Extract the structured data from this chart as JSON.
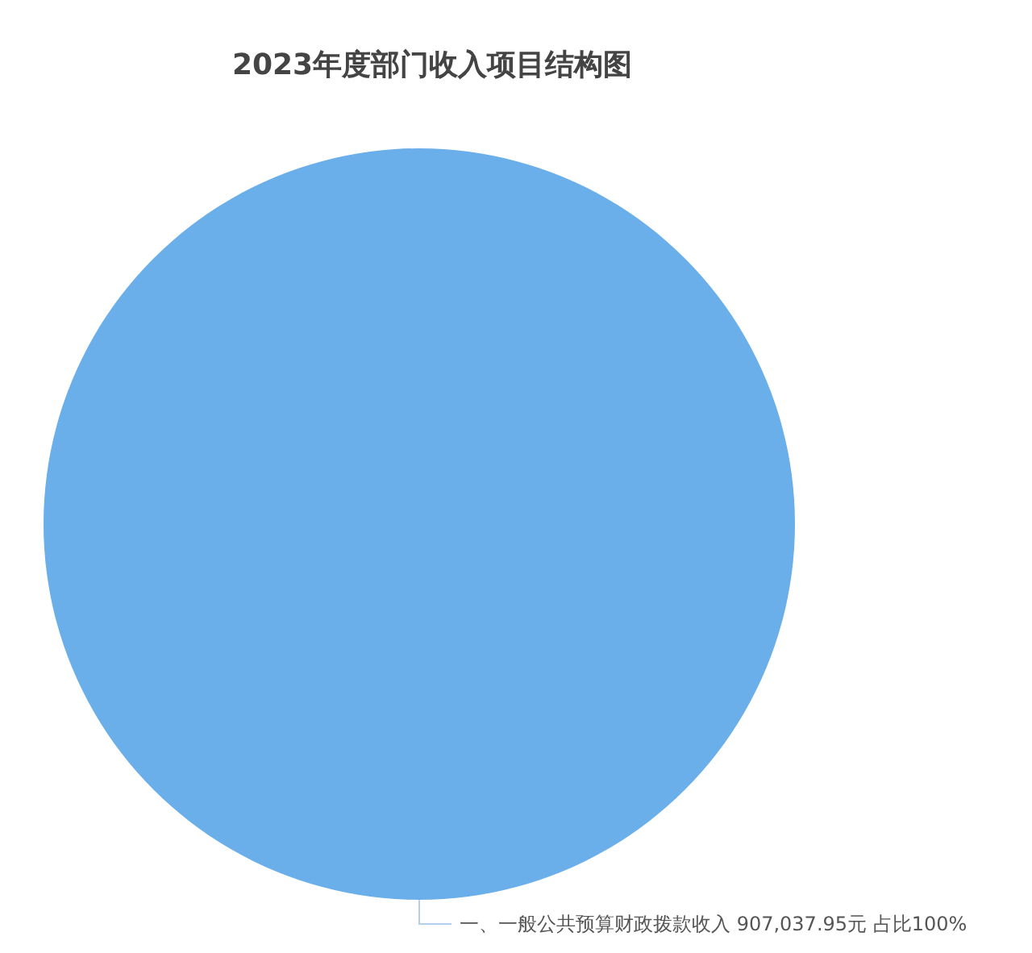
{
  "chart_data": {
    "type": "pie",
    "title": "2023年度部门收入项目结构图",
    "categories": [
      "一、一般公共预算财政拨款收入"
    ],
    "values": [
      907037.95
    ],
    "value_labels": [
      "907,037.95元 占比100%"
    ],
    "colors": [
      "#6aaeea"
    ],
    "legend": false
  }
}
